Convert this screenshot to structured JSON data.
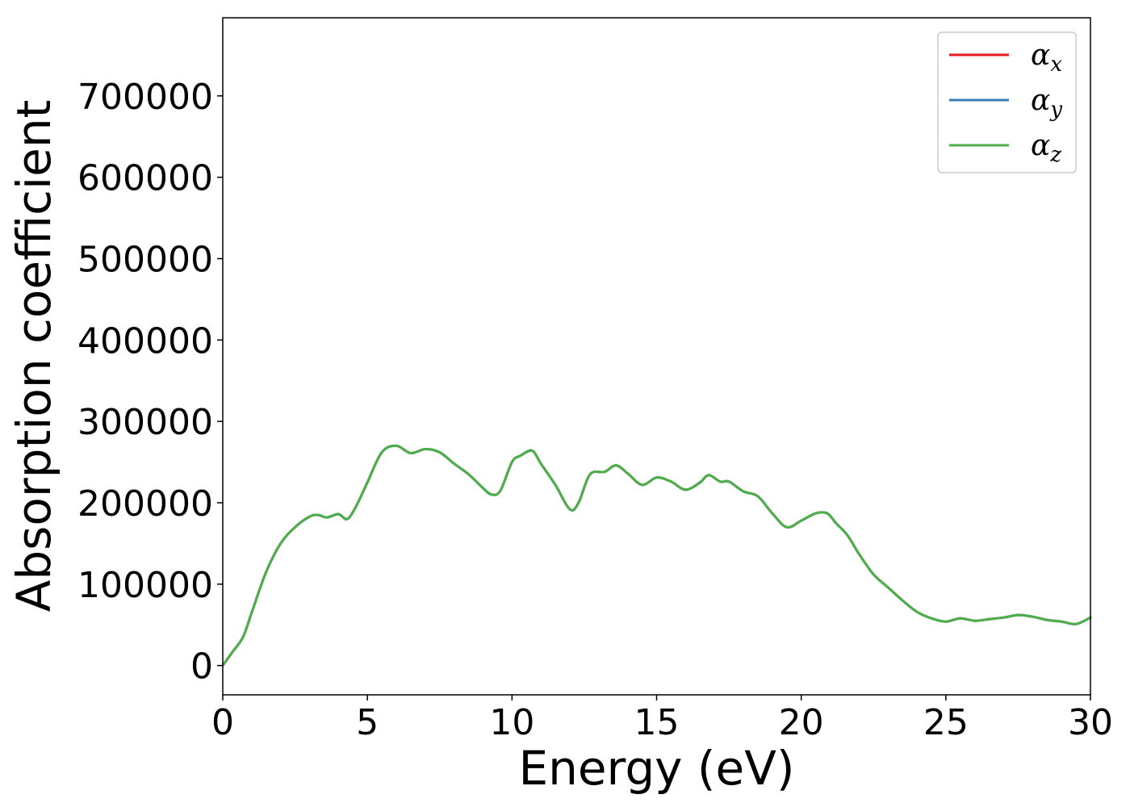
{
  "chart_data": {
    "type": "line",
    "title": "",
    "xlabel": "Energy (eV)",
    "ylabel": "Absorption coefficient",
    "xlim": [
      0,
      30
    ],
    "ylim": [
      -36000,
      796000
    ],
    "xticks": [
      0,
      5,
      10,
      15,
      20,
      25,
      30
    ],
    "xtick_labels": [
      "0",
      "5",
      "10",
      "15",
      "20",
      "25",
      "30"
    ],
    "yticks": [
      0,
      100000,
      200000,
      300000,
      400000,
      500000,
      600000,
      700000
    ],
    "ytick_labels": [
      "0",
      "100000",
      "200000",
      "300000",
      "400000",
      "500000",
      "600000",
      "700000"
    ],
    "grid": false,
    "legend_position": "top-right",
    "series": [
      {
        "name": "αx",
        "symbol": "α",
        "subscript": "x",
        "color": "#e41a1c",
        "x": [
          0,
          0.3,
          0.7,
          1.0,
          1.5,
          2.0,
          2.5,
          3.0,
          3.3,
          3.6,
          4.0,
          4.3,
          4.6,
          5.0,
          5.5,
          6.0,
          6.5,
          7.0,
          7.5,
          8.0,
          8.5,
          9.0,
          9.3,
          9.6,
          10.0,
          10.3,
          10.7,
          11.0,
          11.5,
          12.0,
          12.3,
          12.7,
          13.2,
          13.6,
          14.0,
          14.5,
          15.0,
          15.5,
          16.0,
          16.5,
          16.8,
          17.2,
          17.5,
          18.0,
          18.5,
          19.0,
          19.5,
          20.0,
          20.5,
          20.9,
          21.2,
          21.6,
          22.0,
          22.5,
          23.0,
          23.5,
          24.0,
          24.5,
          25.0,
          25.5,
          26.0,
          26.5,
          27.0,
          27.5,
          28.0,
          28.5,
          29.0,
          29.5,
          30.0
        ],
        "y": [
          0,
          15000,
          35000,
          65000,
          115000,
          150000,
          170000,
          183000,
          185000,
          182000,
          186000,
          180000,
          195000,
          225000,
          262000,
          270000,
          261000,
          266000,
          262000,
          248000,
          235000,
          218000,
          210000,
          215000,
          250000,
          258000,
          264000,
          248000,
          222000,
          192000,
          200000,
          235000,
          238000,
          246000,
          236000,
          222000,
          231000,
          226000,
          216000,
          225000,
          234000,
          226000,
          226000,
          214000,
          208000,
          187000,
          170000,
          178000,
          187000,
          187000,
          175000,
          160000,
          137000,
          112000,
          96000,
          80000,
          66000,
          58000,
          54000,
          58000,
          55000,
          57000,
          59000,
          62000,
          60000,
          56000,
          54000,
          51000,
          59000
        ]
      },
      {
        "name": "αy",
        "symbol": "α",
        "subscript": "y",
        "color": "#377eb8",
        "x": [
          0,
          0.3,
          0.7,
          1.0,
          1.5,
          2.0,
          2.5,
          3.0,
          3.3,
          3.6,
          4.0,
          4.3,
          4.6,
          5.0,
          5.5,
          6.0,
          6.5,
          7.0,
          7.5,
          8.0,
          8.5,
          9.0,
          9.3,
          9.6,
          10.0,
          10.3,
          10.7,
          11.0,
          11.5,
          12.0,
          12.3,
          12.7,
          13.2,
          13.6,
          14.0,
          14.5,
          15.0,
          15.5,
          16.0,
          16.5,
          16.8,
          17.2,
          17.5,
          18.0,
          18.5,
          19.0,
          19.5,
          20.0,
          20.5,
          20.9,
          21.2,
          21.6,
          22.0,
          22.5,
          23.0,
          23.5,
          24.0,
          24.5,
          25.0,
          25.5,
          26.0,
          26.5,
          27.0,
          27.5,
          28.0,
          28.5,
          29.0,
          29.5,
          30.0
        ],
        "y": [
          0,
          15000,
          35000,
          65000,
          115000,
          150000,
          170000,
          183000,
          185000,
          182000,
          186000,
          180000,
          195000,
          225000,
          262000,
          270000,
          261000,
          266000,
          262000,
          248000,
          235000,
          218000,
          210000,
          215000,
          250000,
          258000,
          264000,
          248000,
          222000,
          192000,
          200000,
          235000,
          238000,
          246000,
          236000,
          222000,
          231000,
          226000,
          216000,
          225000,
          234000,
          226000,
          226000,
          214000,
          208000,
          187000,
          170000,
          178000,
          187000,
          187000,
          175000,
          160000,
          137000,
          112000,
          96000,
          80000,
          66000,
          58000,
          54000,
          58000,
          55000,
          57000,
          59000,
          62000,
          60000,
          56000,
          54000,
          51000,
          59000
        ]
      },
      {
        "name": "αz",
        "symbol": "α",
        "subscript": "z",
        "color": "#4daf4a",
        "x": [
          0,
          0.3,
          0.7,
          1.0,
          1.5,
          2.0,
          2.5,
          3.0,
          3.3,
          3.6,
          4.0,
          4.3,
          4.6,
          5.0,
          5.5,
          6.0,
          6.5,
          7.0,
          7.5,
          8.0,
          8.5,
          9.0,
          9.3,
          9.6,
          10.0,
          10.3,
          10.7,
          11.0,
          11.5,
          12.0,
          12.3,
          12.7,
          13.2,
          13.6,
          14.0,
          14.5,
          15.0,
          15.5,
          16.0,
          16.5,
          16.8,
          17.2,
          17.5,
          18.0,
          18.5,
          19.0,
          19.5,
          20.0,
          20.5,
          20.9,
          21.2,
          21.6,
          22.0,
          22.5,
          23.0,
          23.5,
          24.0,
          24.5,
          25.0,
          25.5,
          26.0,
          26.5,
          27.0,
          27.5,
          28.0,
          28.5,
          29.0,
          29.5,
          30.0
        ],
        "y": [
          0,
          15000,
          35000,
          65000,
          115000,
          150000,
          170000,
          183000,
          185000,
          182000,
          186000,
          180000,
          195000,
          225000,
          262000,
          270000,
          261000,
          266000,
          262000,
          248000,
          235000,
          218000,
          210000,
          215000,
          250000,
          258000,
          264000,
          248000,
          222000,
          192000,
          200000,
          235000,
          238000,
          246000,
          236000,
          222000,
          231000,
          226000,
          216000,
          225000,
          234000,
          226000,
          226000,
          214000,
          208000,
          187000,
          170000,
          178000,
          187000,
          187000,
          175000,
          160000,
          137000,
          112000,
          96000,
          80000,
          66000,
          58000,
          54000,
          58000,
          55000,
          57000,
          59000,
          62000,
          60000,
          56000,
          54000,
          51000,
          59000
        ]
      }
    ]
  }
}
